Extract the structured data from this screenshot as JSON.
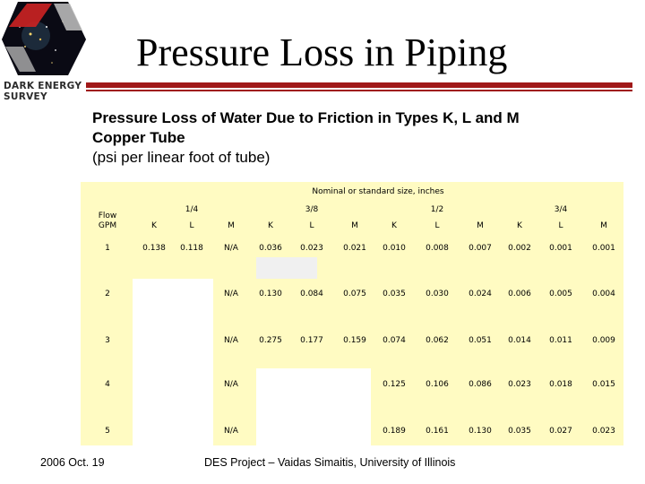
{
  "header": {
    "logo_lines": [
      "DARK ENERGY",
      "SURVEY"
    ],
    "title": "Pressure Loss in Piping"
  },
  "subtitle": {
    "line1": "Pressure Loss of Water Due to Friction in Types K, L and M",
    "line2": "Copper Tube",
    "line3": "(psi per linear foot of tube)"
  },
  "table": {
    "group_header": "Nominal or standard size, inches",
    "flow_header": [
      "Flow",
      "GPM"
    ],
    "sizes": [
      "1/4",
      "3/8",
      "1/2",
      "3/4"
    ],
    "types": [
      "K",
      "L",
      "M"
    ],
    "rows": [
      {
        "flow": "1",
        "values": [
          "0.138",
          "0.118",
          "N/A",
          "0.036",
          "0.023",
          "0.021",
          "0.010",
          "0.008",
          "0.007",
          "0.002",
          "0.001",
          "0.001"
        ]
      },
      {
        "flow": "2",
        "values": [
          "",
          "",
          "N/A",
          "0.130",
          "0.084",
          "0.075",
          "0.035",
          "0.030",
          "0.024",
          "0.006",
          "0.005",
          "0.004"
        ]
      },
      {
        "flow": "3",
        "values": [
          "",
          "",
          "N/A",
          "0.275",
          "0.177",
          "0.159",
          "0.074",
          "0.062",
          "0.051",
          "0.014",
          "0.011",
          "0.009"
        ]
      },
      {
        "flow": "4",
        "values": [
          "",
          "",
          "N/A",
          "",
          "",
          "",
          "0.125",
          "0.106",
          "0.086",
          "0.023",
          "0.018",
          "0.015"
        ]
      },
      {
        "flow": "5",
        "values": [
          "",
          "",
          "N/A",
          "",
          "",
          "",
          "0.189",
          "0.161",
          "0.130",
          "0.035",
          "0.027",
          "0.023"
        ]
      }
    ]
  },
  "footer": {
    "date": "2006 Oct. 19",
    "credit": "DES Project – Vaidas Simaitis,  University of Illinois"
  },
  "colors": {
    "table_bg": "#fffbc2",
    "accent_rule": "#a01818"
  }
}
